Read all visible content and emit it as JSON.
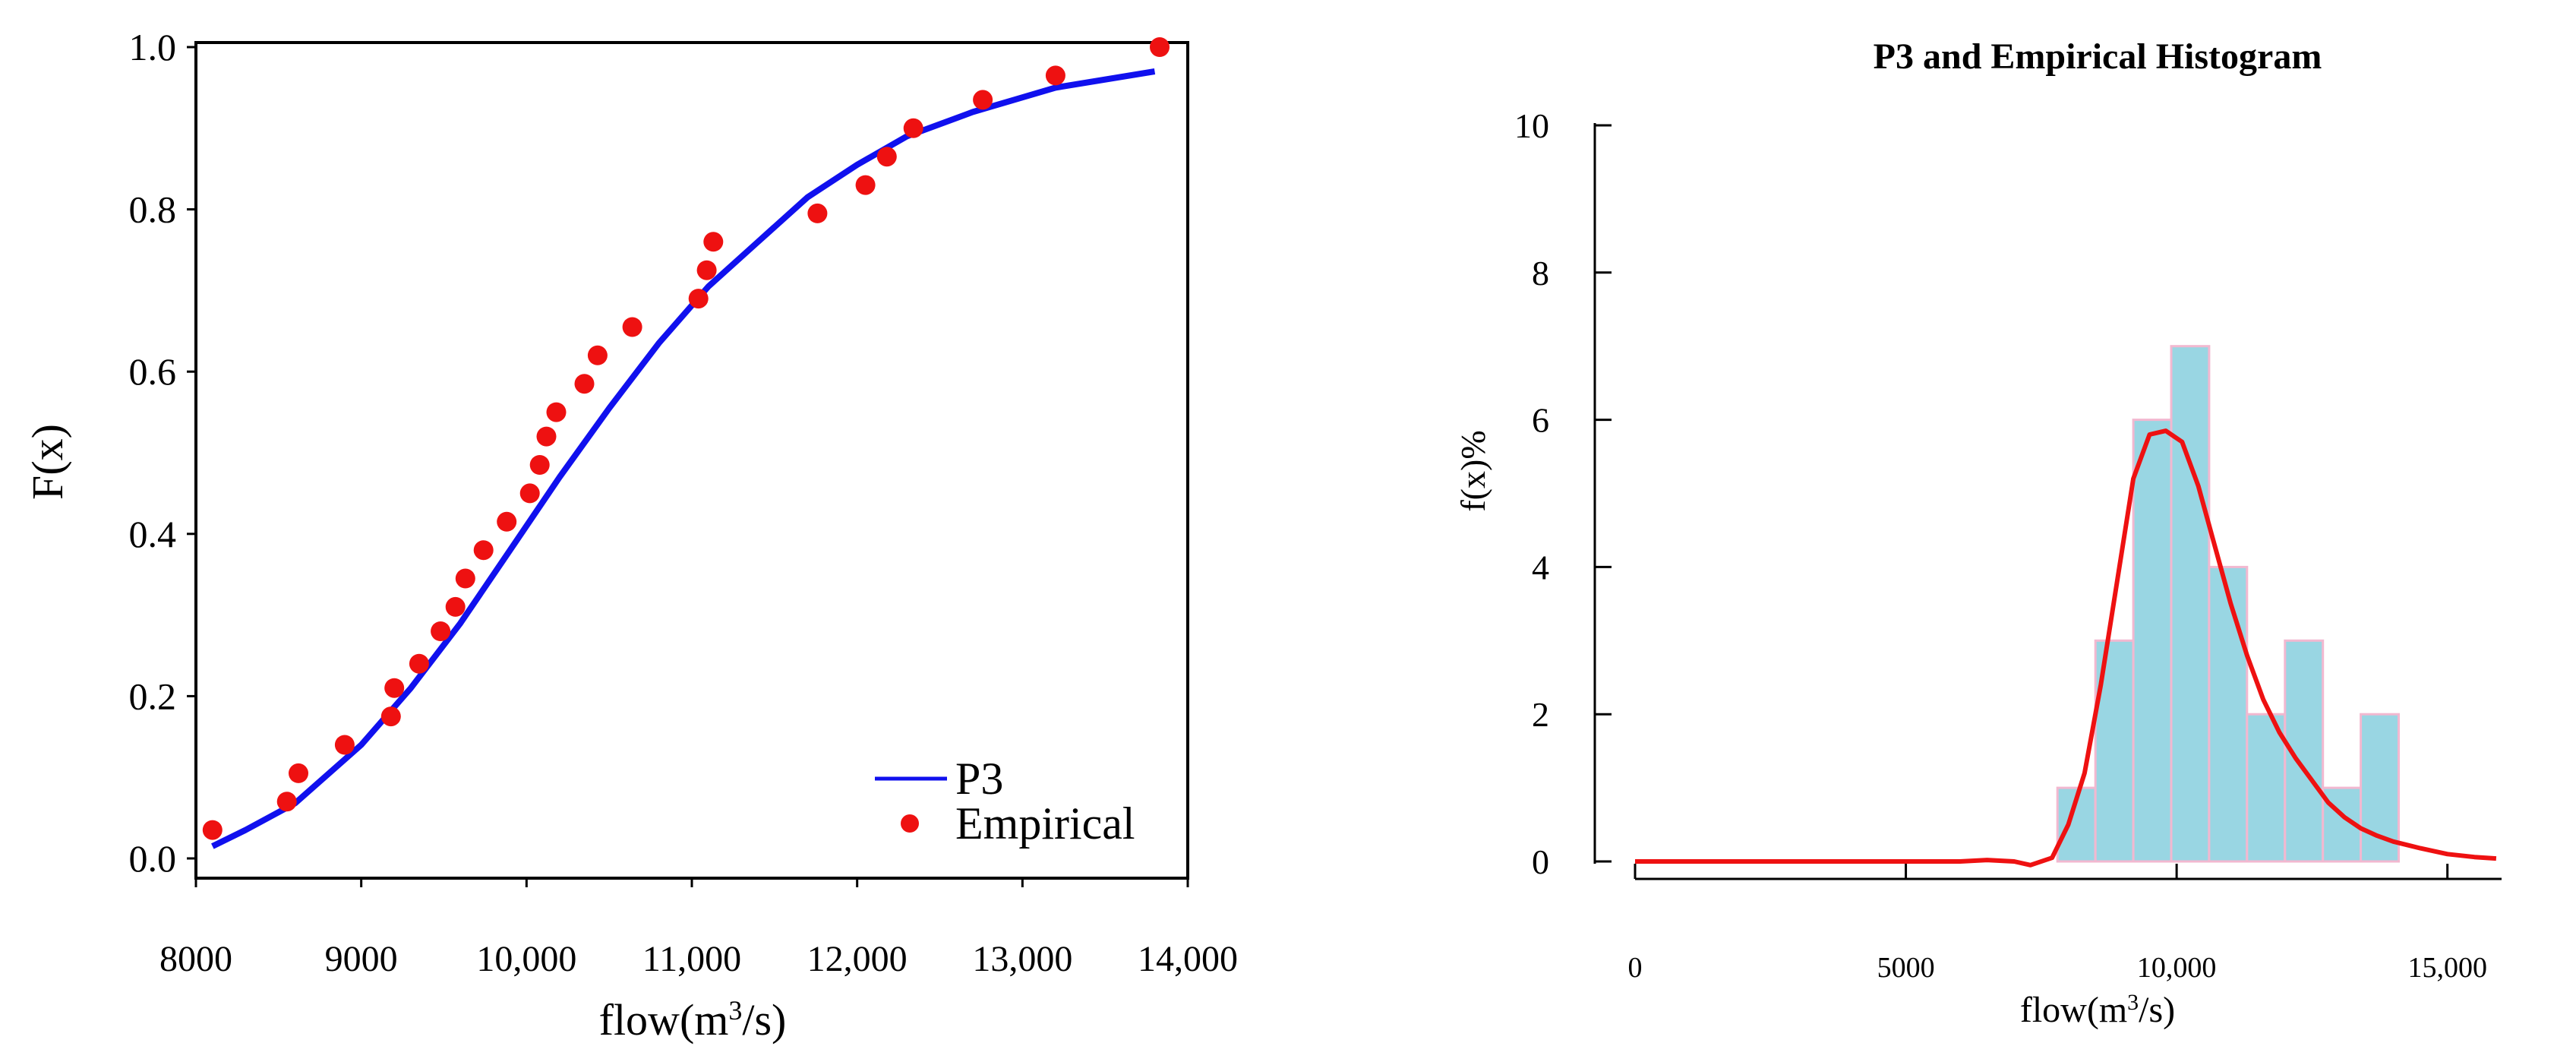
{
  "colors": {
    "p3_line": "#1010ee",
    "empirical": "#ee1111",
    "hist_fill": "#99d6e3",
    "hist_edge": "#f2b8d0",
    "pdf_line": "#ee1111",
    "axis": "#000000"
  },
  "chart_data": [
    {
      "type": "line+scatter",
      "title": "",
      "xlabel": "flow(m",
      "xlabel_sup": "3",
      "xlabel_tail": "/s)",
      "ylabel": "F(x)",
      "xlim": [
        8000,
        14000
      ],
      "ylim": [
        0.0,
        1.0
      ],
      "xticks": [
        {
          "v": 8000,
          "label": "8000"
        },
        {
          "v": 9000,
          "label": "9000"
        },
        {
          "v": 10000,
          "label": "10,000"
        },
        {
          "v": 11000,
          "label": "11,000"
        },
        {
          "v": 12000,
          "label": "12,000"
        },
        {
          "v": 13000,
          "label": "13,000"
        },
        {
          "v": 14000,
          "label": "14,000"
        }
      ],
      "yticks": [
        {
          "v": 0.0,
          "label": "0.0"
        },
        {
          "v": 0.2,
          "label": "0.2"
        },
        {
          "v": 0.4,
          "label": "0.4"
        },
        {
          "v": 0.6,
          "label": "0.6"
        },
        {
          "v": 0.8,
          "label": "0.8"
        },
        {
          "v": 1.0,
          "label": "1.0"
        }
      ],
      "legend": {
        "position": "bottom-right",
        "line_label": "P3",
        "point_label": "Empirical"
      },
      "series": [
        {
          "name": "P3",
          "kind": "line",
          "x": [
            8100,
            8300,
            8600,
            9000,
            9300,
            9600,
            9900,
            10200,
            10500,
            10800,
            11100,
            11400,
            11700,
            12000,
            12300,
            12700,
            13200,
            13800
          ],
          "y": [
            0.015,
            0.035,
            0.068,
            0.14,
            0.21,
            0.29,
            0.38,
            0.47,
            0.555,
            0.635,
            0.705,
            0.76,
            0.815,
            0.855,
            0.89,
            0.92,
            0.95,
            0.97
          ]
        },
        {
          "name": "Empirical",
          "kind": "scatter",
          "x": [
            8100,
            8550,
            8620,
            8900,
            9180,
            9200,
            9350,
            9480,
            9570,
            9630,
            9740,
            9880,
            10020,
            10080,
            10120,
            10180,
            10350,
            10430,
            10640,
            11040,
            11090,
            11130,
            11760,
            12050,
            12180,
            12340,
            12760,
            13200,
            13830
          ],
          "y": [
            0.035,
            0.07,
            0.105,
            0.14,
            0.175,
            0.21,
            0.24,
            0.28,
            0.31,
            0.345,
            0.38,
            0.415,
            0.45,
            0.485,
            0.52,
            0.55,
            0.585,
            0.62,
            0.655,
            0.69,
            0.725,
            0.76,
            0.795,
            0.83,
            0.865,
            0.9,
            0.935,
            0.965,
            1.0
          ]
        }
      ]
    },
    {
      "type": "bar+line",
      "title": "P3 and Empirical Histogram",
      "xlabel": "flow(m",
      "xlabel_sup": "3",
      "xlabel_tail": "/s)",
      "ylabel": "f(x)%",
      "xlim": [
        0,
        16000
      ],
      "ylim": [
        0,
        10
      ],
      "xticks": [
        {
          "v": 0,
          "label": "0"
        },
        {
          "v": 5000,
          "label": "5000"
        },
        {
          "v": 10000,
          "label": "10,000"
        },
        {
          "v": 15000,
          "label": "15,000"
        }
      ],
      "yticks": [
        {
          "v": 0,
          "label": "0"
        },
        {
          "v": 2,
          "label": "2"
        },
        {
          "v": 4,
          "label": "4"
        },
        {
          "v": 6,
          "label": "6"
        },
        {
          "v": 8,
          "label": "8"
        },
        {
          "v": 10,
          "label": "10"
        }
      ],
      "histogram": {
        "bin_edges": [
          7800,
          8500,
          9200,
          9900,
          10600,
          11300,
          12000,
          12700,
          13400,
          14100
        ],
        "values": [
          1,
          3,
          6,
          7,
          4,
          2,
          3,
          1,
          2
        ]
      },
      "pdf": {
        "name": "P3",
        "x": [
          0,
          2000,
          4000,
          6000,
          6500,
          7000,
          7300,
          7700,
          8000,
          8300,
          8600,
          8900,
          9200,
          9500,
          9800,
          10100,
          10400,
          10700,
          11000,
          11300,
          11600,
          11900,
          12200,
          12500,
          12800,
          13100,
          13400,
          13700,
          14000,
          14500,
          15000,
          15500,
          15900
        ],
        "y": [
          0,
          0,
          0,
          0,
          0.02,
          0,
          -0.05,
          0.05,
          0.5,
          1.2,
          2.4,
          3.8,
          5.2,
          5.8,
          5.85,
          5.7,
          5.1,
          4.3,
          3.5,
          2.8,
          2.2,
          1.75,
          1.4,
          1.1,
          0.8,
          0.6,
          0.45,
          0.35,
          0.27,
          0.18,
          0.1,
          0.06,
          0.04
        ]
      }
    }
  ]
}
